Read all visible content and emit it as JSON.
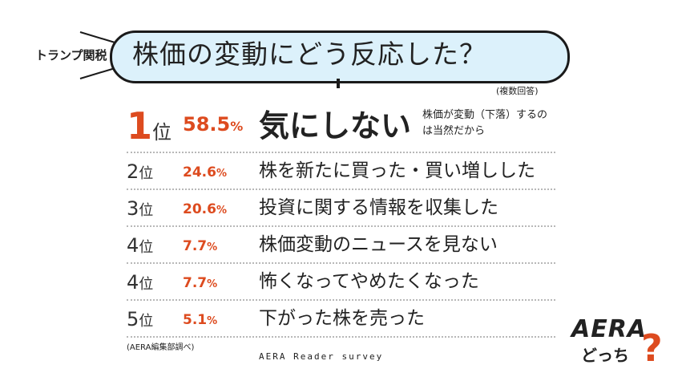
{
  "header": {
    "topic": "トランプ関税",
    "question": "株価の変動にどう反応した？",
    "note": "(複数回答)"
  },
  "chart_data": {
    "type": "table",
    "rows": [
      {
        "rank": "1",
        "rank_suffix": "位",
        "percent": 58.5,
        "percent_text": "58.5",
        "unit": "%",
        "answer": "気にしない",
        "reason": "株価が変動（下落）するのは当然だから"
      },
      {
        "rank": "2",
        "rank_suffix": "位",
        "percent": 24.6,
        "percent_text": "24.6",
        "unit": "%",
        "answer": "株を新たに買った・買い増しした"
      },
      {
        "rank": "3",
        "rank_suffix": "位",
        "percent": 20.6,
        "percent_text": "20.6",
        "unit": "%",
        "answer": "投資に関する情報を収集した"
      },
      {
        "rank": "4",
        "rank_suffix": "位",
        "percent": 7.7,
        "percent_text": "7.7",
        "unit": "%",
        "answer": "株価変動のニュースを見ない"
      },
      {
        "rank": "4",
        "rank_suffix": "位",
        "percent": 7.7,
        "percent_text": "7.7",
        "unit": "%",
        "answer": "怖くなってやめたくなった"
      },
      {
        "rank": "5",
        "rank_suffix": "位",
        "percent": 5.1,
        "percent_text": "5.1",
        "unit": "%",
        "answer": "下がった株を売った"
      }
    ]
  },
  "footer": {
    "source": "(AERA編集部調べ)",
    "survey": "AERA Reader survey"
  },
  "logo": {
    "brand": "AERA",
    "sub": "どっち",
    "mark": "?",
    "brand_color": "#222222",
    "mark_color": "#dd4b1f"
  },
  "colors": {
    "accent": "#dd4b1f",
    "bubble_fill": "#dcf1fb"
  }
}
